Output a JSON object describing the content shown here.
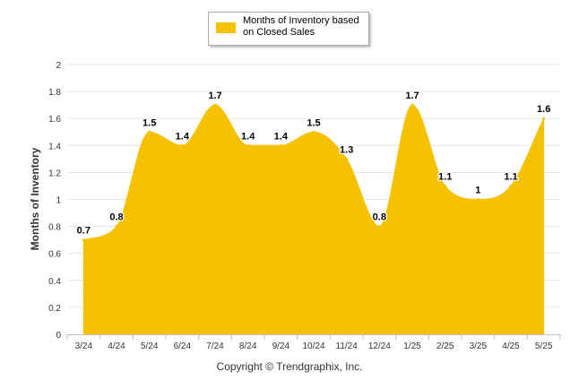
{
  "colors": {
    "fill": "#F5C100",
    "grid": "#E6E6E6",
    "axis_text": "#333333",
    "label_text": "#000000"
  },
  "copyright": "Copyright © Trendgraphix, Inc.",
  "chart_data": {
    "type": "area",
    "categories": [
      "3/24",
      "4/24",
      "5/24",
      "6/24",
      "7/24",
      "8/24",
      "9/24",
      "10/24",
      "11/24",
      "12/24",
      "1/25",
      "2/25",
      "3/25",
      "4/25",
      "5/25"
    ],
    "series": [
      {
        "name": "Months of Inventory based on Closed Sales",
        "values": [
          0.7,
          0.8,
          1.5,
          1.4,
          1.7,
          1.4,
          1.4,
          1.5,
          1.3,
          0.8,
          1.7,
          1.1,
          1.0,
          1.1,
          1.6
        ]
      }
    ],
    "data_labels": [
      "0.7",
      "0.8",
      "1.5",
      "1.4",
      "1.7",
      "1.4",
      "1.4",
      "1.5",
      "1.3",
      "0.8",
      "1.7",
      "1.1",
      "1",
      "1.1",
      "1.6"
    ],
    "ylabel": "Months of Inventory",
    "xlabel": "",
    "ylim": [
      0,
      2
    ],
    "yticks": [
      "0",
      "0.2",
      "0.4",
      "0.6",
      "0.8",
      "1",
      "1.2",
      "1.4",
      "1.6",
      "1.8",
      "2"
    ],
    "grid": true,
    "legend_position": "top-center",
    "smooth": true
  }
}
